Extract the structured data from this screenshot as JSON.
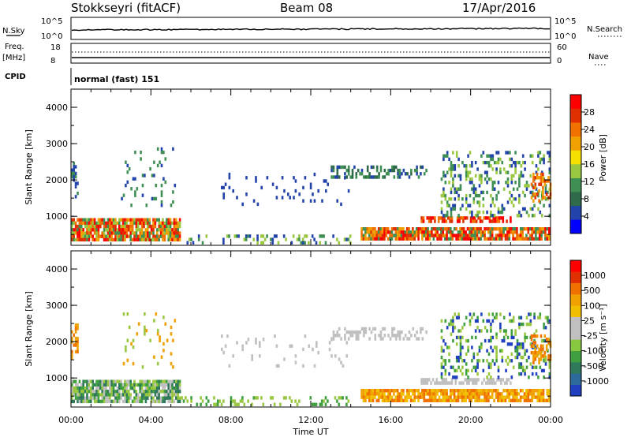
{
  "header": {
    "station": "Stokkseyri (fitACF)",
    "beam": "Beam 08",
    "date": "17/Apr/2016"
  },
  "panels": {
    "nsky": {
      "label": "N.Sky",
      "left_ticks": [
        "10^5",
        "10^0"
      ],
      "right_ticks": [
        "10^5",
        "10^0"
      ],
      "right_label": "N.Search"
    },
    "freq": {
      "label_top": "Freq.",
      "label_unit": "[MHz]",
      "left_ticks": [
        "18",
        "8"
      ],
      "right_ticks": [
        "60",
        "0"
      ],
      "right_label": "Nave"
    },
    "cpid": {
      "label": "CPID",
      "value": "normal (fast) 151"
    }
  },
  "colorbars": {
    "power": {
      "label": "Power [dB]",
      "ticks": [
        "28",
        "24",
        "20",
        "16",
        "12",
        "8",
        "4"
      ],
      "colors": [
        "#0000ff",
        "#2244aa",
        "#2f6a4a",
        "#3f8f55",
        "#99c840",
        "#f6e000",
        "#f0a000",
        "#f07000",
        "#e03000",
        "#ff0000"
      ]
    },
    "velocity": {
      "label": "Velocity [m s⁻¹]",
      "ticks": [
        "1000",
        "500",
        "100",
        "25",
        "-25",
        "-100",
        "-500",
        "-1000"
      ],
      "colors": [
        "#2040c0",
        "#2b6a9a",
        "#2f7a5a",
        "#40a040",
        "#88c840",
        "#c0c0c0",
        "#c0c0c0",
        "#f0c000",
        "#f0a000",
        "#f07000",
        "#e03000",
        "#ff0000"
      ]
    }
  },
  "chart_data": [
    {
      "type": "heatmap",
      "title": "Power",
      "xlabel": "Time UT",
      "ylabel": "Slant Range [km]",
      "x_ticks": [
        "00:00",
        "04:00",
        "08:00",
        "12:00",
        "16:00",
        "20:00",
        "00:00"
      ],
      "y_ticks": [
        "4000",
        "3000",
        "2000",
        "1000"
      ],
      "ylim": [
        200,
        4500
      ],
      "xlim_hours": [
        0,
        24
      ]
    },
    {
      "type": "heatmap",
      "title": "Velocity",
      "xlabel": "Time UT",
      "ylabel": "Slant Range [km]",
      "x_ticks": [
        "00:00",
        "04:00",
        "08:00",
        "12:00",
        "16:00",
        "20:00",
        "00:00"
      ],
      "y_ticks": [
        "4000",
        "3000",
        "2000",
        "1000"
      ],
      "ylim": [
        200,
        4500
      ],
      "xlim_hours": [
        0,
        24
      ]
    }
  ],
  "xaxis": {
    "label": "Time UT"
  }
}
